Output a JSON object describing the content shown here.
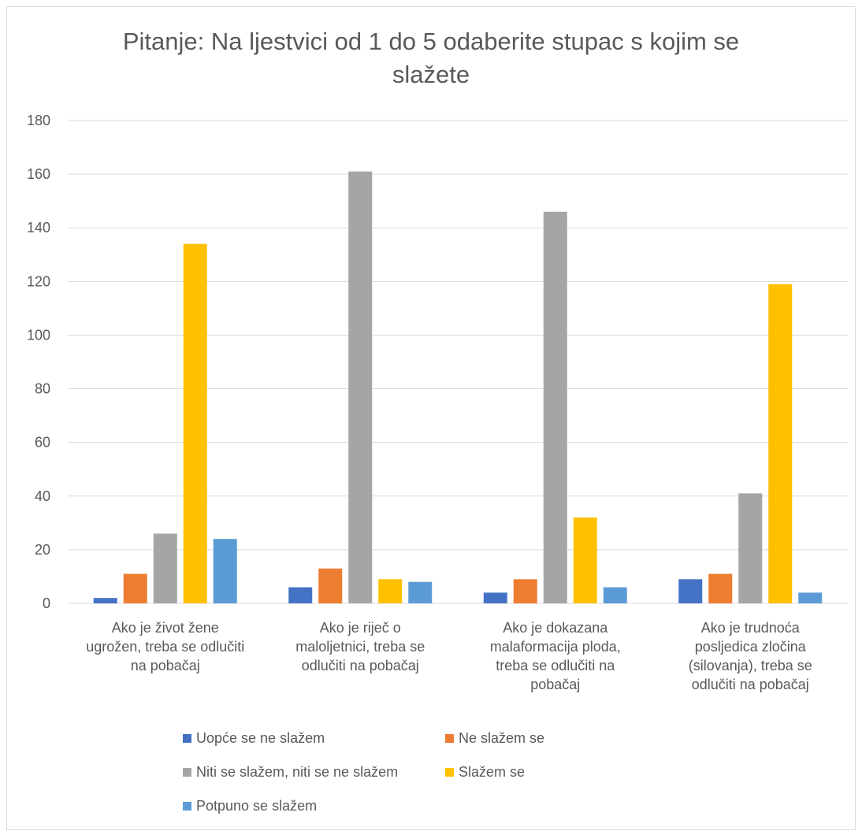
{
  "chart_data": {
    "type": "bar",
    "title": "Pitanje: Na ljestvici od 1 do 5 odaberite stupac s kojim se slažete",
    "title_lines": [
      "Pitanje: Na ljestvici od 1 do 5 odaberite stupac s kojim se",
      "slažete"
    ],
    "categories": [
      "Ako je život žene ugrožen, treba se odlučiti na pobačaj",
      "Ako je riječ o maloljetnici, treba se odlučiti na pobačaj",
      "Ako je dokazana malaformacija ploda, treba se odlučiti na pobačaj",
      "Ako je trudnoća posljedica zločina (silovanja), treba se odlučiti na pobačaj"
    ],
    "category_lines": [
      [
        "Ako je život žene",
        "ugrožen, treba se odlučiti",
        "na pobačaj"
      ],
      [
        "Ako je riječ o",
        "maloljetnici, treba se",
        "odlučiti na pobačaj"
      ],
      [
        "Ako je dokazana",
        "malaformacija ploda,",
        "treba se odlučiti na",
        "pobačaj"
      ],
      [
        "Ako je trudnoća",
        "posljedica zločina",
        "(silovanja), treba se",
        "odlučiti na pobačaj"
      ]
    ],
    "series": [
      {
        "name": "Uopće se ne slažem",
        "color": "#4472c4",
        "values": [
          2,
          6,
          4,
          9
        ]
      },
      {
        "name": "Ne slažem se",
        "color": "#ed7d31",
        "values": [
          11,
          13,
          9,
          11
        ]
      },
      {
        "name": "Niti se slažem, niti se ne slažem",
        "color": "#a5a5a5",
        "values": [
          26,
          161,
          146,
          41
        ]
      },
      {
        "name": "Slažem se",
        "color": "#ffc000",
        "values": [
          134,
          9,
          32,
          119
        ]
      },
      {
        "name": "Potpuno se slažem",
        "color": "#5b9bd5",
        "values": [
          24,
          8,
          6,
          4
        ]
      }
    ],
    "y_ticks": [
      "0",
      "20",
      "40",
      "60",
      "80",
      "100",
      "120",
      "140",
      "160",
      "180"
    ],
    "ylim": [
      0,
      180
    ],
    "ytick_step": 20,
    "grid": true,
    "legend_position": "bottom"
  }
}
